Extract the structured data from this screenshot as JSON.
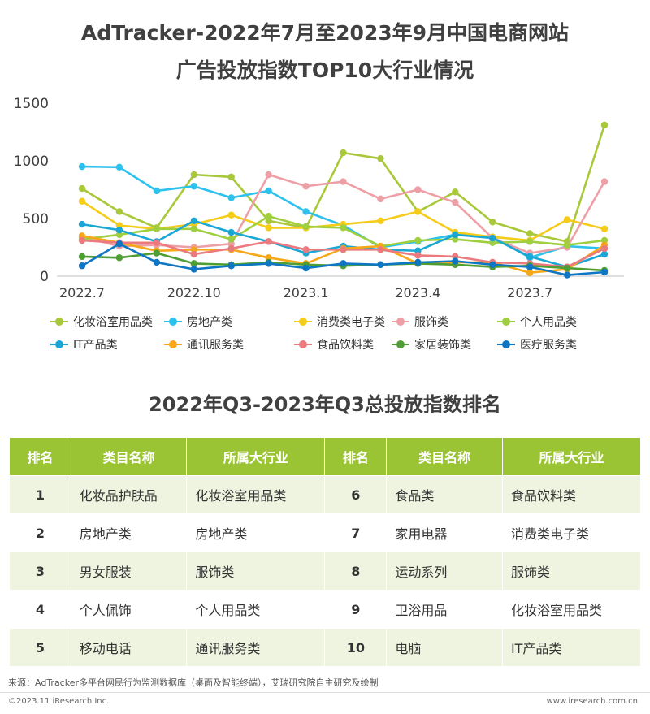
{
  "title_line1": "AdTracker-2022年7月至2023年9月中国电商网站",
  "title_line2": "广告投放指数TOP10大行业情况",
  "chart_data": {
    "type": "line",
    "y_ticks": [
      "1500",
      "1000",
      "500",
      "0"
    ],
    "ylim": [
      0,
      1500
    ],
    "x_tick_labels": [
      {
        "index": 0,
        "label": "2022.7"
      },
      {
        "index": 3,
        "label": "2022.10"
      },
      {
        "index": 6,
        "label": "2023.1"
      },
      {
        "index": 9,
        "label": "2023.4"
      },
      {
        "index": 12,
        "label": "2023.7"
      }
    ],
    "x_count": 15,
    "grid": false,
    "legend_position": "bottom",
    "series": [
      {
        "name": "化妆浴室用品类",
        "color": "#a8c83a",
        "values": [
          760,
          560,
          420,
          880,
          860,
          480,
          420,
          1070,
          1020,
          560,
          730,
          470,
          370,
          300,
          1310
        ]
      },
      {
        "name": "房地产类",
        "color": "#2dc1ee",
        "values": [
          950,
          945,
          740,
          780,
          680,
          740,
          560,
          440,
          250,
          300,
          360,
          340,
          160,
          260,
          240
        ]
      },
      {
        "name": "消费类电子类",
        "color": "#f5cc1a",
        "values": [
          650,
          440,
          410,
          450,
          530,
          420,
          420,
          450,
          480,
          560,
          380,
          340,
          310,
          490,
          410
        ]
      },
      {
        "name": "服饰类",
        "color": "#ee9fa5",
        "values": [
          340,
          260,
          270,
          250,
          280,
          880,
          780,
          820,
          670,
          750,
          640,
          330,
          200,
          250,
          820
        ]
      },
      {
        "name": "个人用品类",
        "color": "#9fcf3e",
        "values": [
          320,
          360,
          410,
          410,
          320,
          520,
          430,
          420,
          260,
          310,
          320,
          290,
          300,
          270,
          310
        ]
      },
      {
        "name": "IT产品类",
        "color": "#1ba7d6",
        "values": [
          450,
          400,
          300,
          480,
          380,
          300,
          200,
          260,
          230,
          220,
          360,
          330,
          170,
          80,
          190
        ]
      },
      {
        "name": "通讯服务类",
        "color": "#f6a819",
        "values": [
          350,
          290,
          220,
          230,
          230,
          160,
          110,
          240,
          260,
          110,
          120,
          120,
          30,
          60,
          270
        ]
      },
      {
        "name": "食品饮料类",
        "color": "#ea7a7e",
        "values": [
          310,
          290,
          290,
          190,
          240,
          300,
          230,
          230,
          230,
          180,
          170,
          120,
          110,
          80,
          240
        ]
      },
      {
        "name": "家居装饰类",
        "color": "#4e9e34",
        "values": [
          170,
          160,
          200,
          110,
          100,
          120,
          100,
          90,
          100,
          110,
          100,
          80,
          90,
          70,
          50
        ]
      },
      {
        "name": "医疗服务类",
        "color": "#0f76c4",
        "values": [
          90,
          280,
          120,
          60,
          90,
          110,
          70,
          110,
          100,
          120,
          130,
          100,
          80,
          10,
          35
        ]
      }
    ]
  },
  "table": {
    "title": "2022年Q3-2023年Q3总投放指数排名",
    "headers": [
      "排名",
      "类目名称",
      "所属大行业",
      "排名",
      "类目名称",
      "所属大行业"
    ],
    "rows": [
      [
        "1",
        "化妆品护肤品",
        "化妆浴室用品类",
        "6",
        "食品类",
        "食品饮料类"
      ],
      [
        "2",
        "房地产类",
        "房地产类",
        "7",
        "家用电器",
        "消费类电子类"
      ],
      [
        "3",
        "男女服装",
        "服饰类",
        "8",
        "运动系列",
        "服饰类"
      ],
      [
        "4",
        "个人佩饰",
        "个人用品类",
        "9",
        "卫浴用品",
        "化妆浴室用品类"
      ],
      [
        "5",
        "移动电话",
        "通讯服务类",
        "10",
        "电脑",
        "IT产品类"
      ]
    ]
  },
  "footer": {
    "source": "来源：AdTracker多平台网民行为监测数据库（桌面及智能终端），艾瑞研究院自主研究及绘制",
    "copyright": "©2023.11 iResearch Inc.",
    "site": "www.iresearch.com.cn"
  }
}
